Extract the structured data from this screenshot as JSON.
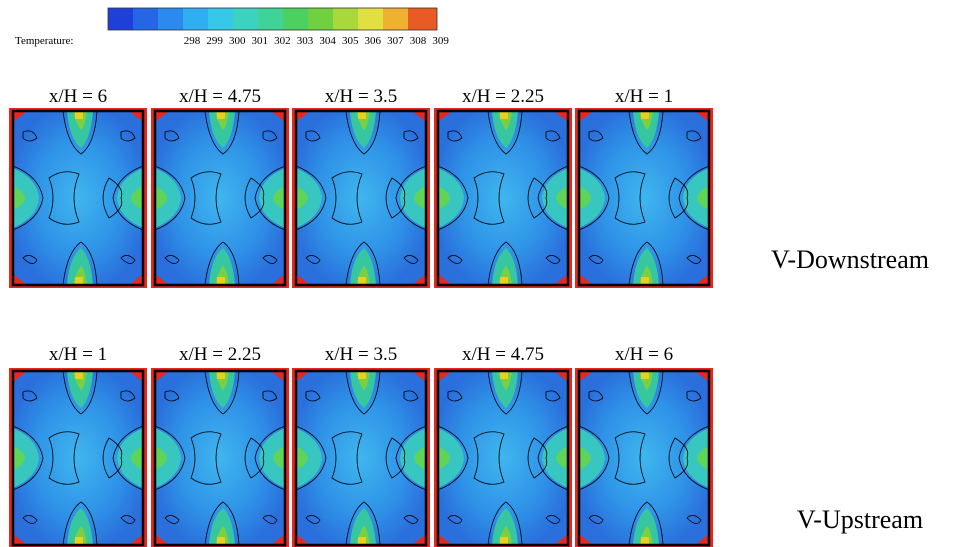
{
  "colorbar": {
    "label": "Temperature:",
    "ticks": [
      298,
      299,
      300,
      301,
      302,
      303,
      304,
      305,
      306,
      307,
      308,
      309
    ]
  },
  "rows": [
    {
      "name": "V-Downstream",
      "panels": [
        "x/H = 6",
        "x/H = 4.75",
        "x/H = 3.5",
        "x/H = 2.25",
        "x/H = 1"
      ]
    },
    {
      "name": "V-Upstream",
      "panels": [
        "x/H = 1",
        "x/H = 2.25",
        "x/H = 3.5",
        "x/H = 4.75",
        "x/H = 6"
      ]
    }
  ]
}
